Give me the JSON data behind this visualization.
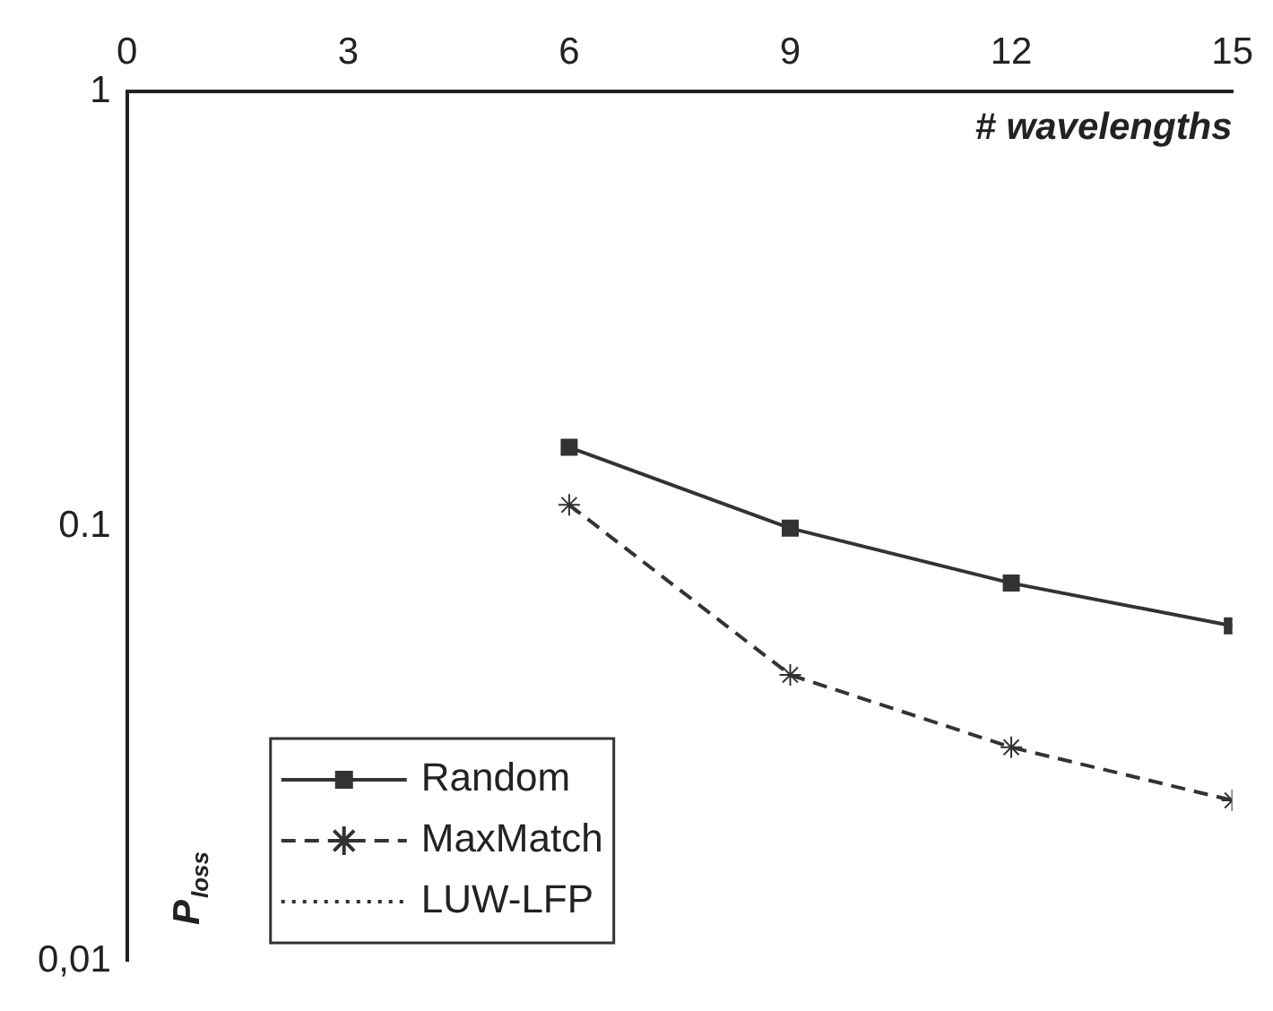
{
  "chart_data": {
    "type": "line",
    "xlabel": "# wavelengths",
    "ylabel": "P$_{loss}$",
    "x": [
      6,
      9,
      12,
      15
    ],
    "series": [
      {
        "name": "Random",
        "color": "#333333",
        "values": [
          0.152,
          0.099,
          0.074,
          0.059
        ],
        "marker": "square",
        "line_style": "solid"
      },
      {
        "name": "MaxMatch",
        "color": "#333333",
        "values": [
          0.112,
          0.0455,
          0.031,
          0.0234
        ],
        "marker": "cross",
        "line_style": "dashed"
      },
      {
        "name": "LUW-LFP",
        "color": "#333333",
        "values": [
          null,
          null,
          null,
          null
        ],
        "marker": "none",
        "line_style": "dotted"
      }
    ],
    "xlim": [
      0,
      15
    ],
    "xticks": [
      0,
      3,
      6,
      9,
      12,
      15
    ],
    "ylim": [
      0.01,
      1
    ],
    "yticks": [
      {
        "value": 0.01,
        "label": "0,01"
      },
      {
        "value": 0.1,
        "label": "0.1"
      },
      1
    ],
    "log": true,
    "grid": false,
    "legend": "bottom left"
  }
}
